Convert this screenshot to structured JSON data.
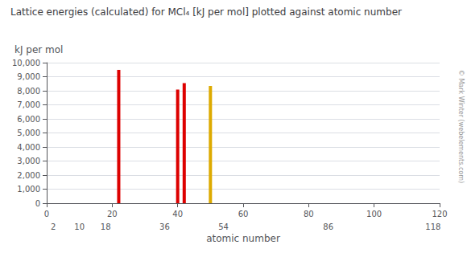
{
  "chart_data": {
    "type": "bar",
    "title": "Lattice energies (calculated) for MCl₄ [kJ per mol] plotted against atomic number",
    "xlabel": "atomic number",
    "ylabel": "kJ per mol",
    "x": [
      22,
      40,
      42,
      50
    ],
    "values": [
      9490,
      8090,
      8550,
      8350
    ],
    "colors": [
      "#dd0000",
      "#dd0000",
      "#dd0000",
      "#ddaa00"
    ],
    "xlim": [
      0,
      120
    ],
    "xticks": [
      0,
      20,
      40,
      60,
      80,
      100,
      120
    ],
    "x2ticks": [
      2,
      10,
      18,
      36,
      54,
      86,
      118
    ],
    "ylim": [
      0,
      10000
    ],
    "yticks": [
      0,
      1000,
      2000,
      3000,
      4000,
      5000,
      6000,
      7000,
      8000,
      9000,
      10000
    ],
    "grid": true,
    "annotations": [
      "© Mark Winter (webelements.com)"
    ]
  }
}
